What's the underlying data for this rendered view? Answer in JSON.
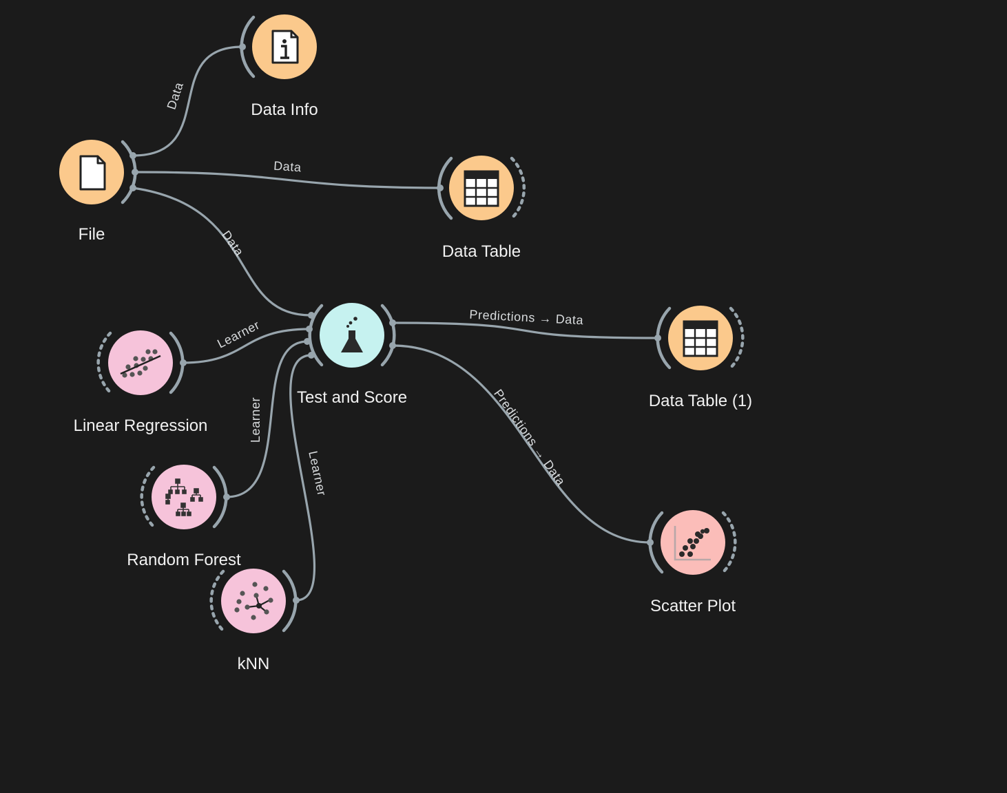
{
  "colors": {
    "background": "#1b1b1b",
    "link": "#98a5ad",
    "data_node": "#fbc98c",
    "model_node": "#f6c3da",
    "evaluate_node": "#c6f2f0",
    "visualize_node": "#fbbdb9"
  },
  "nodes": {
    "file": {
      "label": "File",
      "icon": "file-icon"
    },
    "data_info": {
      "label": "Data Info",
      "icon": "info-document-icon"
    },
    "data_table": {
      "label": "Data Table",
      "icon": "table-icon"
    },
    "test_score": {
      "label": "Test and Score",
      "icon": "flask-icon"
    },
    "data_table_1": {
      "label": "Data Table (1)",
      "icon": "table-icon"
    },
    "linear_regression": {
      "label": "Linear Regression",
      "icon": "regression-icon"
    },
    "random_forest": {
      "label": "Random Forest",
      "icon": "tree-icon"
    },
    "knn": {
      "label": "kNN",
      "icon": "knn-icon"
    },
    "scatter_plot": {
      "label": "Scatter Plot",
      "icon": "scatter-icon"
    }
  },
  "links": {
    "file_info": "Data",
    "file_table": "Data",
    "file_test": "Data",
    "lr_test": "Learner",
    "rf_test": "Learner",
    "knn_test": "Learner",
    "test_table": "Predictions → Data",
    "test_scatter": "Predictions → Data"
  }
}
